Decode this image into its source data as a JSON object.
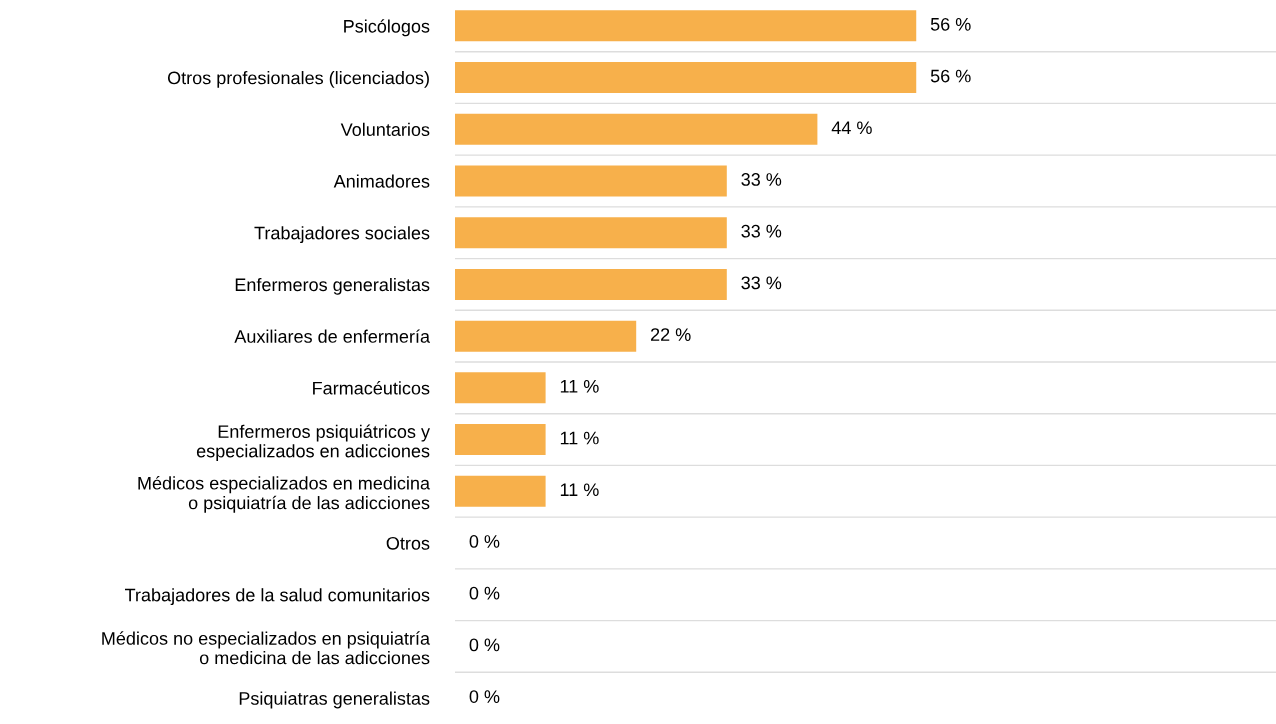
{
  "chart_data": {
    "type": "bar",
    "orientation": "horizontal",
    "categories": [
      "Psicólogos",
      "Otros profesionales (licenciados)",
      "Voluntarios",
      "Animadores",
      "Trabajadores sociales",
      "Enfermeros generalistas",
      "Auxiliares de enfermería",
      "Farmacéuticos",
      "Enfermeros psiquiátricos y\nespecializados en adicciones",
      "Médicos especializados en medicina\no psiquiatría de las adicciones",
      "Otros",
      "Trabajadores de la salud comunitarios",
      "Médicos no especializados en psiquiatría\no medicina de las adicciones",
      "Psiquiatras generalistas"
    ],
    "values": [
      56,
      56,
      44,
      33,
      33,
      33,
      22,
      11,
      11,
      11,
      0,
      0,
      0,
      0
    ],
    "value_labels": [
      "56 %",
      "56 %",
      "44 %",
      "33 %",
      "33 %",
      "33 %",
      "22 %",
      "11 %",
      "11 %",
      "11 %",
      "0 %",
      "0 %",
      "0 %",
      "0 %"
    ],
    "color": "#f7b04b",
    "grid": "y",
    "tick_labels": "y"
  }
}
